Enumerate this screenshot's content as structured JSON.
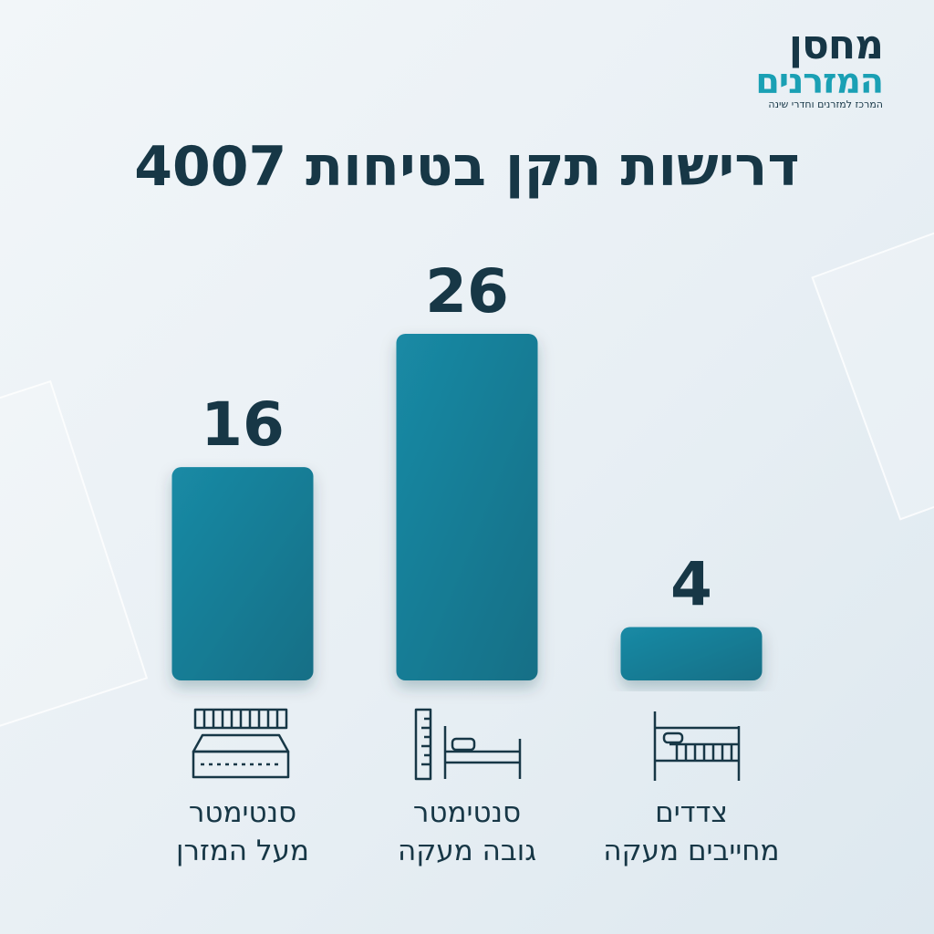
{
  "logo": {
    "line1": "מחסן",
    "line2": "המזרנים",
    "tagline": "המרכז למזרנים וחדרי שינה"
  },
  "title": "דרישות תקן בטיחות 4007",
  "colors": {
    "bar": "#167a92",
    "bar_light": "#1a8aa5",
    "text": "#173746",
    "accent": "#1aa0b4"
  },
  "chart_data": {
    "type": "bar",
    "title": "דרישות תקן בטיחות 4007",
    "categories": [
      "סנטימטר מעל המזרן",
      "סנטימטר גובה מעקה",
      "צדדים מחייבים מעקה"
    ],
    "values": [
      16,
      26,
      4
    ],
    "value_labels": [
      "16",
      "26",
      "4"
    ],
    "ylim": [
      0,
      26
    ],
    "grid": false,
    "legend": "none"
  },
  "captions": [
    {
      "line1": "סנטימטר",
      "line2": "מעל המזרן",
      "icon": "mattress-icon"
    },
    {
      "line1": "סנטימטר",
      "line2": "גובה מעקה",
      "icon": "bed-height-icon"
    },
    {
      "line1": "צדדים",
      "line2": "מחייבים מעקה",
      "icon": "crib-icon"
    }
  ]
}
